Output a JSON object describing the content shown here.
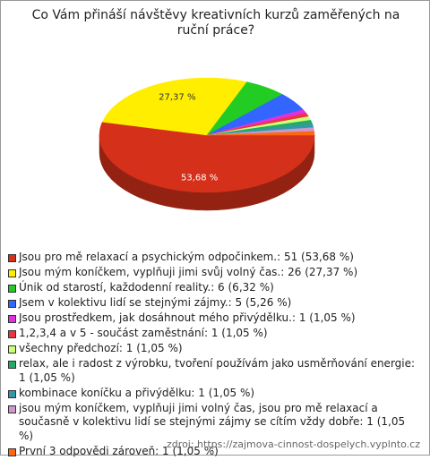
{
  "chart_data": {
    "type": "pie",
    "title": "Co Vám přináší návštěvy kreativních kurzů zaměřených na ruční práce?",
    "categories": [
      "Jsou pro mě relaxací a psychickým odpočinkem.: 51 (53,68 %)",
      "Jsou mým koníčkem, vyplňuji jimi svůj volný čas.: 26 (27,37 %)",
      "Únik od starostí, každodenní reality.: 6 (6,32 %)",
      "Jsem v kolektivu lidí se stejnými zájmy.: 5 (5,26 %)",
      "Jsou prostředkem, jak dosáhnout mého přivýdělku.: 1 (1,05 %)",
      "1,2,3,4 a v 5 - součást zaměstnání: 1 (1,05 %)",
      "všechny předchozí: 1 (1,05 %)",
      "relax, ale i radost z výrobku, tvoření používám jako usměrňování energie: 1 (1,05 %)",
      "kombinace koníčku a přivýdělku: 1 (1,05 %)",
      "jsou mým koníčkem, vyplňuji jimi volný čas, jsou pro mě relaxací a současně v kolektivu lidí se stejnými zájmy se cítím vždy dobře: 1 (1,05 %)",
      "První 3 odpovědi zároveň: 1 (1,05 %)"
    ],
    "values": [
      53.68,
      27.37,
      6.32,
      5.26,
      1.05,
      1.05,
      1.05,
      1.05,
      1.05,
      1.05,
      1.05
    ],
    "value_labels": [
      "53,68 %",
      "27,37 %",
      null,
      null,
      null,
      null,
      null,
      null,
      null,
      null,
      null
    ],
    "colors": [
      "#d4301a",
      "#ffee00",
      "#22cc22",
      "#3366ff",
      "#dd33dd",
      "#ee3344",
      "#ccff77",
      "#22aa66",
      "#3399aa",
      "#cc99cc",
      "#ff6611"
    ],
    "source": "zdroj: https://zajmova-cinnost-dospelych.vyplnto.cz"
  }
}
